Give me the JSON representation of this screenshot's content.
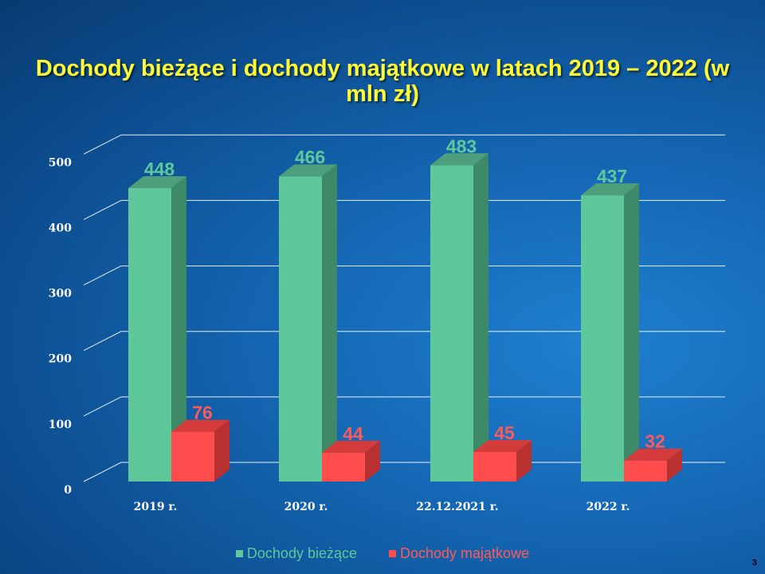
{
  "chart_data": {
    "type": "bar",
    "title": "Dochody bieżące i dochody majątkowe w latach 2019 – 2022 (w mln zł)",
    "categories": [
      "2019 r.",
      "2020 r.",
      "22.12.2021 r.",
      "2022 r."
    ],
    "series": [
      {
        "name": "Dochody bieżące",
        "values": [
          448,
          466,
          483,
          437
        ],
        "color": "#5ec89b",
        "side_color": "#3e8a68",
        "top_color": "#4c9f7a",
        "label_color": "#5ec89b"
      },
      {
        "name": "Dochody majątkowe",
        "values": [
          76,
          44,
          45,
          32
        ],
        "color": "#ff4d4d",
        "side_color": "#b83030",
        "top_color": "#d43b3b",
        "label_color": "#ff5a5a"
      }
    ],
    "yticks": [
      0,
      100,
      200,
      300,
      400,
      500
    ],
    "ylim": [
      0,
      500
    ],
    "grid": true,
    "legend_position": "bottom",
    "three_d": true
  },
  "page_number": "3"
}
